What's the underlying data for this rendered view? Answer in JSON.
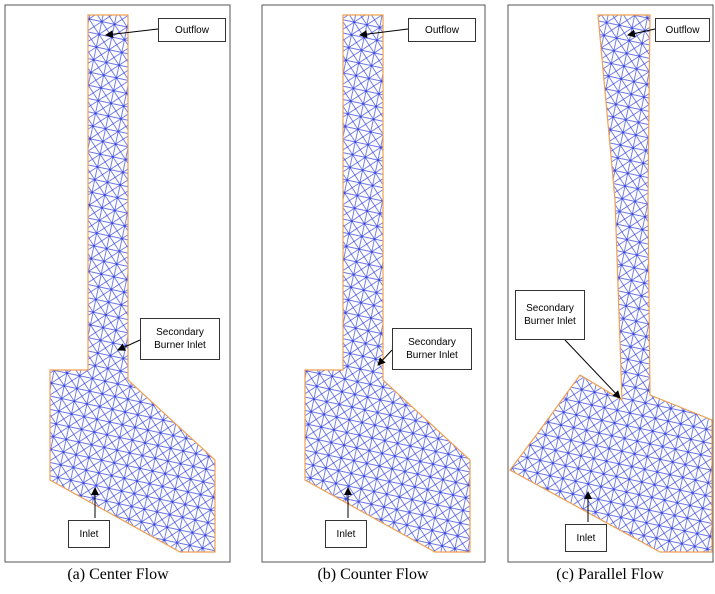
{
  "panels": [
    {
      "outflow_label": "Outflow",
      "secondary_label": "Secondary Burner Inlet",
      "inlet_label": "Inlet",
      "caption": "(a) Center Flow"
    },
    {
      "outflow_label": "Outflow",
      "secondary_label": "Secondary Burner Inlet",
      "inlet_label": "Inlet",
      "caption": "(b) Counter Flow"
    },
    {
      "outflow_label": "Outflow",
      "secondary_label": "Secondary Burner Inlet",
      "inlet_label": "Inlet",
      "caption": "(c) Parallel Flow"
    }
  ]
}
